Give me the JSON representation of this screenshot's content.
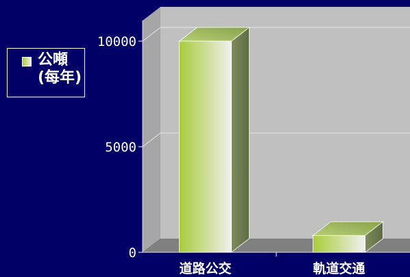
{
  "chart_data": {
    "type": "bar",
    "categories": [
      "道路公交",
      "軌道交通"
    ],
    "series": [
      {
        "name": "公噸(每年)",
        "values": [
          10000,
          800
        ]
      }
    ],
    "ylim": [
      0,
      10000
    ],
    "yticks": [
      "0",
      "5000",
      "10000"
    ],
    "grid": true,
    "legend_position": "left",
    "colors": {
      "bar_front_start": "#a8cc3a",
      "bar_front_end": "#f0f0ee",
      "bar_side": "#6e7a52",
      "bar_top": "#9db56a",
      "wall": "#c0c0c0",
      "floor": "#808080",
      "gridline": "#e6e6e6"
    }
  }
}
